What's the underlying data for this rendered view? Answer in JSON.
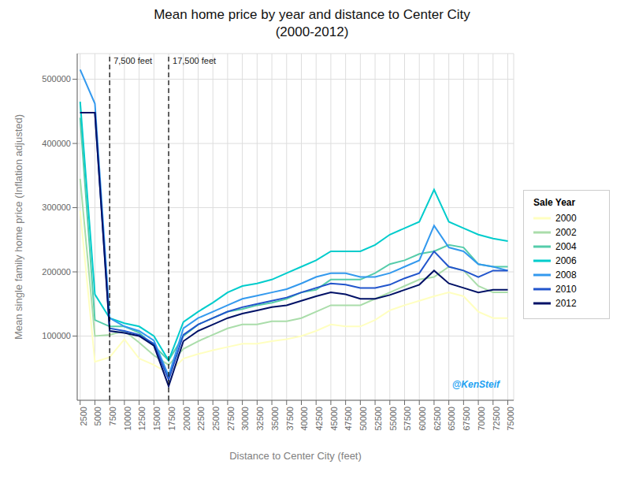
{
  "chart_data": {
    "type": "line",
    "title": "Mean home price by year and distance to Center City\n(2000-2012)",
    "x_label": "Distance to Center City (feet)",
    "y_label": "Mean single family home price (Inflation adjusted)",
    "x": [
      2500,
      5000,
      7500,
      10000,
      12500,
      15000,
      17500,
      20000,
      22500,
      25000,
      27500,
      30000,
      32500,
      35000,
      37500,
      40000,
      42500,
      45000,
      47500,
      50000,
      52500,
      55000,
      57500,
      60000,
      62500,
      65000,
      67500,
      70000,
      72500,
      75000
    ],
    "xlim": [
      2000,
      76000
    ],
    "xticks": [
      2500,
      5000,
      7500,
      10000,
      12500,
      15000,
      17500,
      20000,
      22500,
      25000,
      27500,
      30000,
      32500,
      35000,
      37500,
      40000,
      42500,
      45000,
      47500,
      50000,
      52500,
      55000,
      57500,
      60000,
      62500,
      65000,
      67500,
      70000,
      72500,
      75000
    ],
    "ylim": [
      0,
      540000
    ],
    "yticks": [
      100000,
      200000,
      300000,
      400000,
      500000
    ],
    "grid": true,
    "legend": "right",
    "legend_title": "Sale Year",
    "series": [
      {
        "name": "2000",
        "color": "#FFFFC0",
        "values": [
          295000,
          60000,
          67000,
          95000,
          65000,
          55000,
          42000,
          65000,
          72000,
          78000,
          83000,
          88000,
          88000,
          92000,
          95000,
          100000,
          108000,
          118000,
          115000,
          115000,
          125000,
          140000,
          148000,
          155000,
          162000,
          168000,
          162000,
          138000,
          128000,
          128000
        ]
      },
      {
        "name": "2002",
        "color": "#AADDAA",
        "values": [
          345000,
          100000,
          102000,
          108000,
          90000,
          70000,
          55000,
          80000,
          92000,
          102000,
          112000,
          118000,
          118000,
          123000,
          123000,
          128000,
          138000,
          148000,
          148000,
          148000,
          158000,
          168000,
          178000,
          188000,
          192000,
          208000,
          202000,
          178000,
          168000,
          168000
        ]
      },
      {
        "name": "2004",
        "color": "#55CCAA",
        "values": [
          440000,
          125000,
          115000,
          115000,
          105000,
          85000,
          62000,
          100000,
          118000,
          128000,
          138000,
          142000,
          148000,
          152000,
          158000,
          168000,
          172000,
          188000,
          188000,
          188000,
          198000,
          212000,
          218000,
          228000,
          232000,
          242000,
          238000,
          212000,
          208000,
          208000
        ]
      },
      {
        "name": "2006",
        "color": "#00CCCC",
        "values": [
          465000,
          165000,
          128000,
          120000,
          115000,
          100000,
          62000,
          122000,
          138000,
          152000,
          168000,
          178000,
          182000,
          188000,
          198000,
          208000,
          218000,
          232000,
          232000,
          232000,
          242000,
          258000,
          268000,
          278000,
          328000,
          278000,
          268000,
          258000,
          252000,
          248000
        ]
      },
      {
        "name": "2008",
        "color": "#3399EE",
        "values": [
          515000,
          462000,
          128000,
          115000,
          108000,
          93000,
          38000,
          112000,
          128000,
          138000,
          148000,
          158000,
          163000,
          168000,
          173000,
          182000,
          192000,
          198000,
          198000,
          192000,
          192000,
          198000,
          208000,
          218000,
          272000,
          238000,
          232000,
          212000,
          208000,
          202000
        ]
      },
      {
        "name": "2010",
        "color": "#2255CC",
        "values": [
          448000,
          448000,
          112000,
          108000,
          102000,
          88000,
          32000,
          102000,
          118000,
          128000,
          138000,
          145000,
          150000,
          155000,
          160000,
          168000,
          175000,
          182000,
          180000,
          175000,
          175000,
          180000,
          190000,
          198000,
          232000,
          208000,
          202000,
          192000,
          202000,
          202000
        ]
      },
      {
        "name": "2012",
        "color": "#001166",
        "values": [
          448000,
          448000,
          108000,
          105000,
          100000,
          85000,
          22000,
          92000,
          108000,
          118000,
          128000,
          135000,
          140000,
          145000,
          148000,
          155000,
          162000,
          168000,
          165000,
          158000,
          158000,
          164000,
          172000,
          180000,
          202000,
          182000,
          175000,
          168000,
          172000,
          172000
        ]
      }
    ],
    "vlines": [
      {
        "x": 7500,
        "label": "7,500 feet",
        "line_style": "dashed"
      },
      {
        "x": 17500,
        "label": "17,500 feet",
        "line_style": "dashed"
      }
    ],
    "annotations": [
      {
        "text": "@KenSteif",
        "color": "#1DA1F2"
      }
    ]
  }
}
